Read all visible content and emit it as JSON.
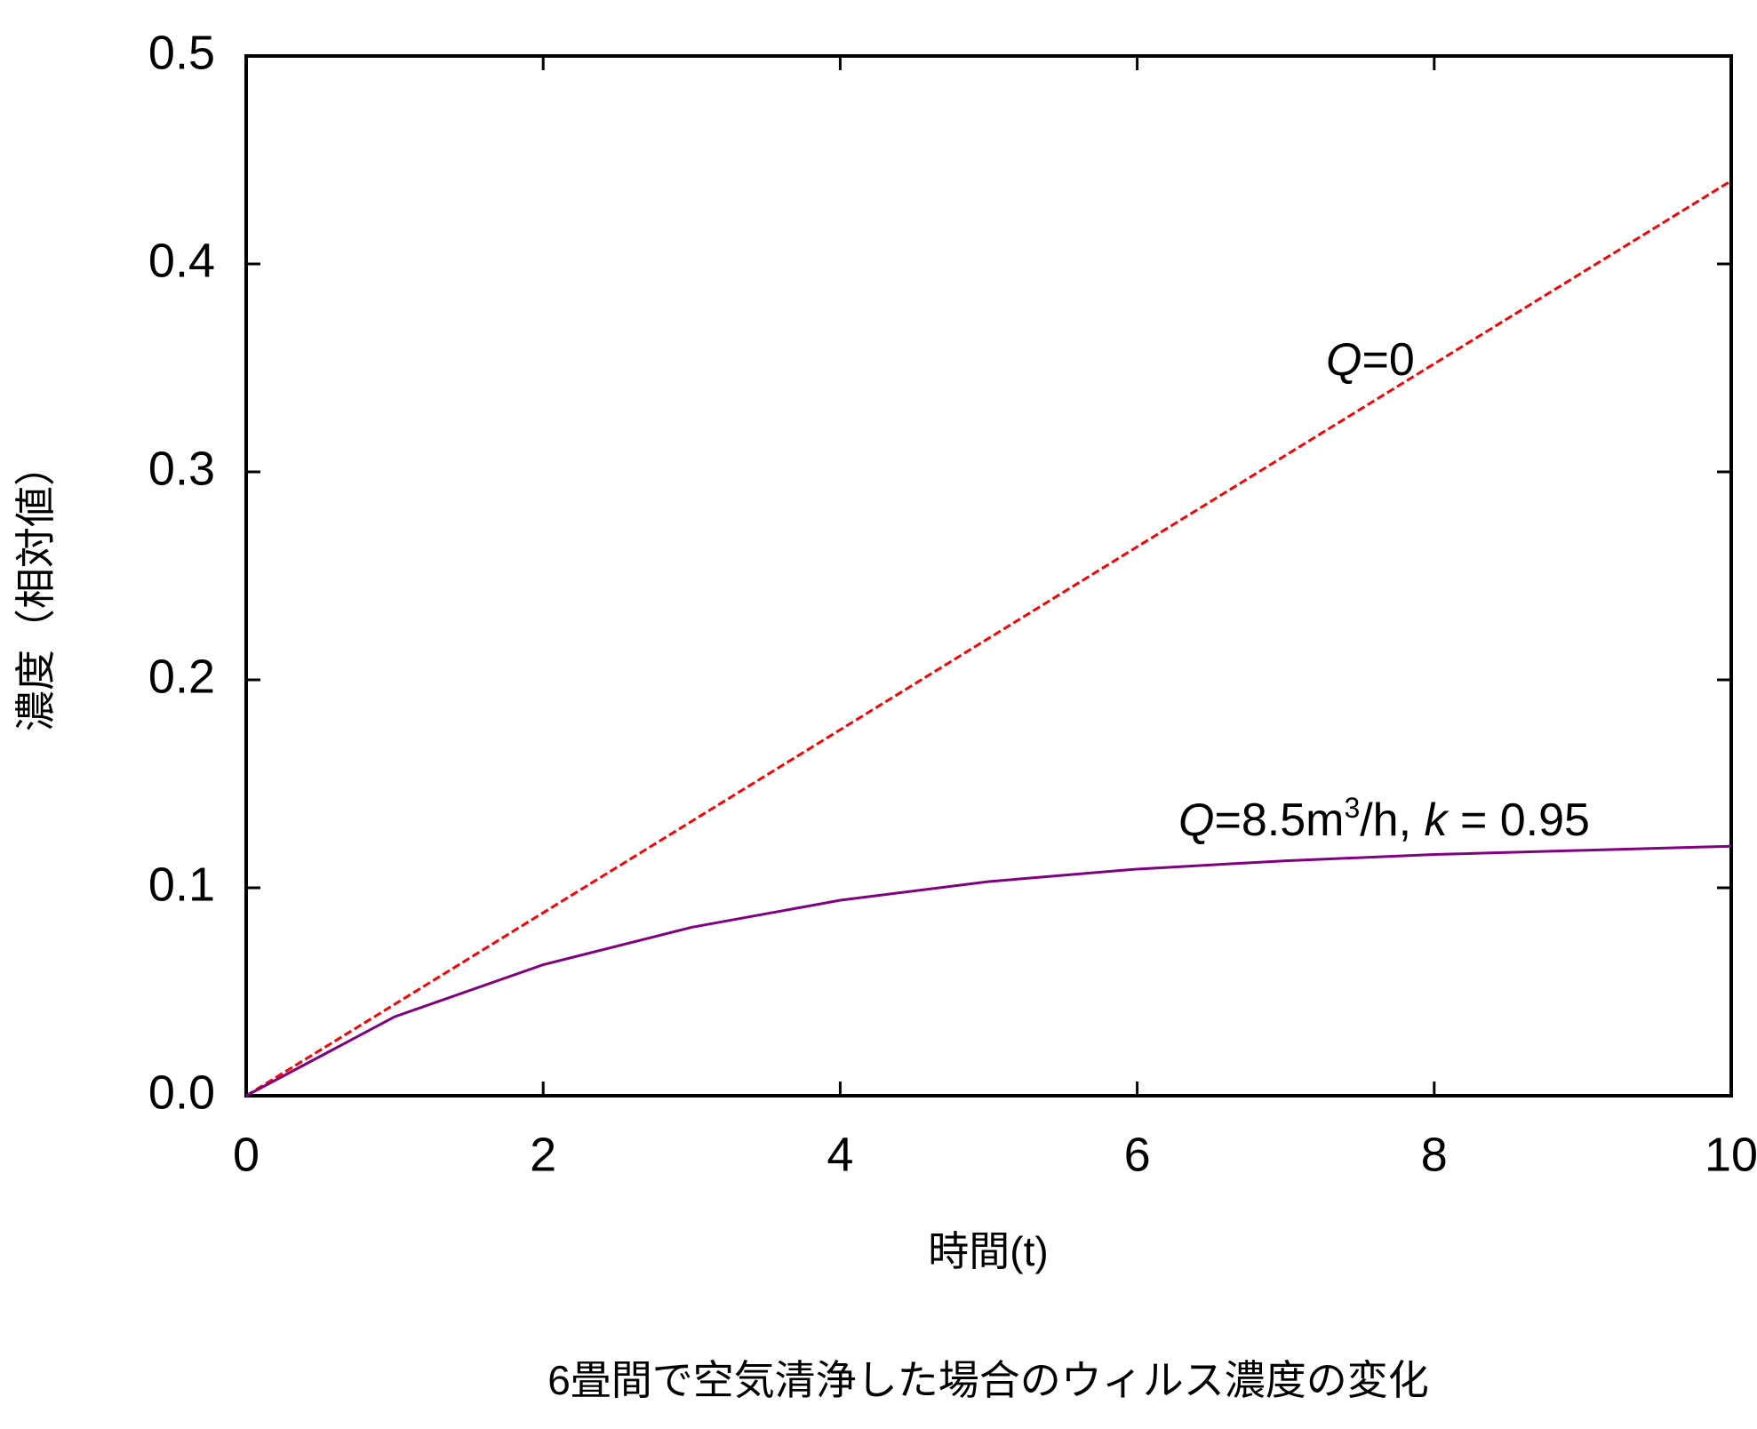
{
  "chart_data": {
    "type": "line",
    "caption": "6畳間で空気清浄した場合のウィルス濃度の変化",
    "x_label": "時間(t)",
    "y_label": "濃度（相対値）",
    "x": [
      0,
      1,
      2,
      3,
      4,
      5,
      6,
      7,
      8,
      9,
      10
    ],
    "series": [
      {
        "name": "Q=0",
        "color": "#ff0000",
        "dashed": true,
        "values": [
          0,
          0.044,
          0.088,
          0.132,
          0.176,
          0.22,
          0.264,
          0.308,
          0.352,
          0.396,
          0.44
        ]
      },
      {
        "name": "Q=8.5m3/h, k = 0.95",
        "color": "#800080",
        "dashed": false,
        "values": [
          0,
          0.038,
          0.063,
          0.081,
          0.094,
          0.103,
          0.109,
          0.113,
          0.116,
          0.118,
          0.12
        ]
      }
    ],
    "annotations": [
      {
        "parts": [
          "Q",
          "=0"
        ]
      },
      {
        "parts": [
          "Q",
          "=8.5m",
          "3",
          "/h, ",
          "k",
          " = 0.95"
        ]
      }
    ],
    "xlim": [
      0,
      10
    ],
    "xticks": [
      0,
      2,
      4,
      6,
      8,
      10
    ],
    "ylim": [
      0,
      0.5
    ],
    "yticks": [
      {
        "value": 0,
        "label": "0.0"
      },
      0.1,
      0.2,
      0.3,
      0.4,
      0.5
    ],
    "grid": false
  }
}
